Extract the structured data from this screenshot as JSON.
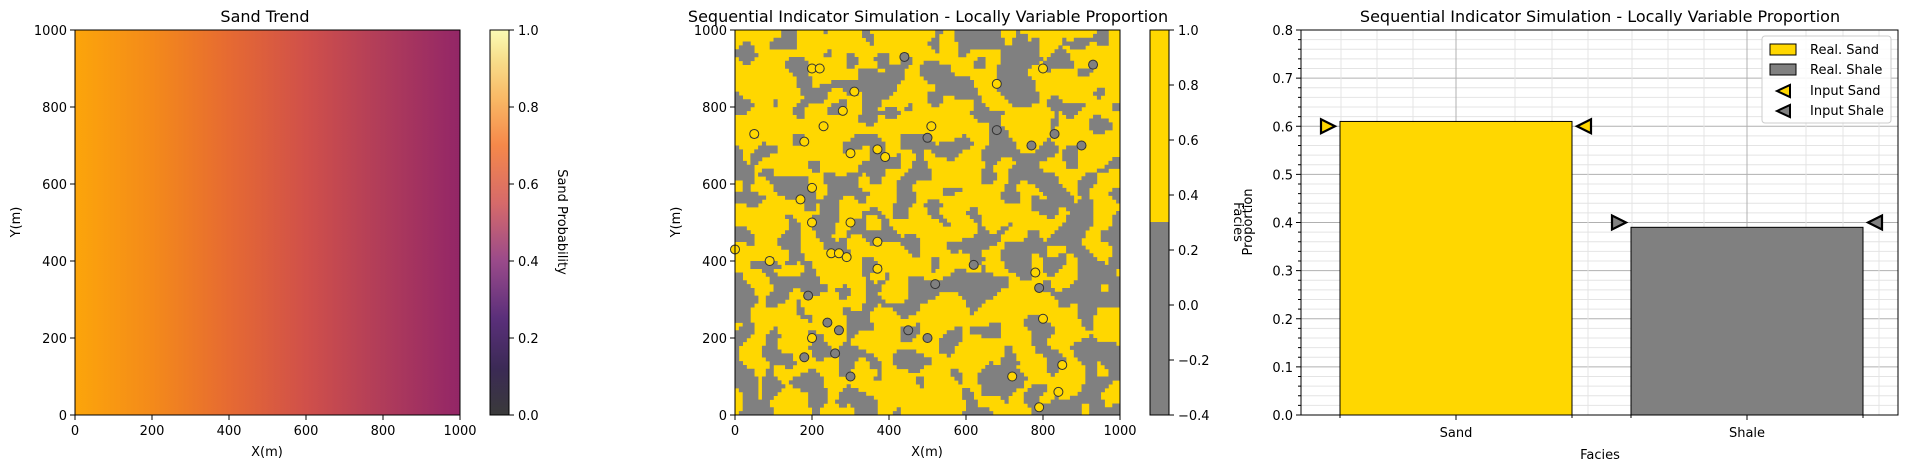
{
  "chart_data": [
    {
      "type": "heatmap",
      "title": "Sand Trend",
      "xlabel": "X(m)",
      "ylabel": "Y(m)",
      "xlim": [
        0,
        1000
      ],
      "ylim": [
        0,
        1000
      ],
      "xticks": [
        "0",
        "200",
        "400",
        "600",
        "800",
        "1000"
      ],
      "yticks": [
        "0",
        "200",
        "400",
        "600",
        "800",
        "1000"
      ],
      "trend": {
        "direction": "x",
        "probability_at_x0": 0.7,
        "probability_at_x1000": 0.3
      },
      "colorbar": {
        "label": "Sand Probability",
        "range": [
          0.0,
          1.0
        ],
        "colormap": "inferno-alpha",
        "ticks": [
          "0.0",
          "0.2",
          "0.4",
          "0.6",
          "0.8",
          "1.0"
        ]
      }
    },
    {
      "type": "heatmap",
      "title": "Sequential Indicator Simulation - Locally Variable Proportion",
      "xlabel": "X(m)",
      "ylabel": "Y(m)",
      "xlim": [
        0,
        1000
      ],
      "ylim": [
        0,
        1000
      ],
      "xticks": [
        "0",
        "200",
        "400",
        "600",
        "800",
        "1000"
      ],
      "yticks": [
        "0",
        "200",
        "400",
        "600",
        "800",
        "1000"
      ],
      "facies_colors": {
        "sand": "#FFD700",
        "shale": "#808080"
      },
      "realization_sand_proportion": 0.61,
      "colorbar": {
        "range": [
          -0.4,
          1.0
        ],
        "split": 0.5,
        "ticks": [
          "−0.4",
          "−0.2",
          "0.0",
          "0.2",
          "0.4",
          "0.6",
          "0.8",
          "1.0"
        ]
      },
      "wells": [
        {
          "x": 440,
          "y": 930,
          "facies": 0
        },
        {
          "x": 200,
          "y": 900,
          "facies": 1
        },
        {
          "x": 220,
          "y": 900,
          "facies": 1
        },
        {
          "x": 930,
          "y": 910,
          "facies": 0
        },
        {
          "x": 800,
          "y": 900,
          "facies": 1
        },
        {
          "x": 680,
          "y": 860,
          "facies": 1
        },
        {
          "x": 310,
          "y": 840,
          "facies": 1
        },
        {
          "x": 280,
          "y": 790,
          "facies": 1
        },
        {
          "x": 50,
          "y": 730,
          "facies": 1
        },
        {
          "x": 230,
          "y": 750,
          "facies": 1
        },
        {
          "x": 510,
          "y": 750,
          "facies": 1
        },
        {
          "x": 500,
          "y": 720,
          "facies": 0
        },
        {
          "x": 680,
          "y": 740,
          "facies": 0
        },
        {
          "x": 830,
          "y": 730,
          "facies": 0
        },
        {
          "x": 180,
          "y": 710,
          "facies": 1
        },
        {
          "x": 370,
          "y": 690,
          "facies": 1
        },
        {
          "x": 300,
          "y": 680,
          "facies": 1
        },
        {
          "x": 390,
          "y": 670,
          "facies": 1
        },
        {
          "x": 770,
          "y": 700,
          "facies": 0
        },
        {
          "x": 900,
          "y": 700,
          "facies": 0
        },
        {
          "x": 200,
          "y": 590,
          "facies": 1
        },
        {
          "x": 170,
          "y": 560,
          "facies": 1
        },
        {
          "x": 200,
          "y": 500,
          "facies": 1
        },
        {
          "x": 300,
          "y": 500,
          "facies": 1
        },
        {
          "x": 370,
          "y": 450,
          "facies": 1
        },
        {
          "x": 0,
          "y": 430,
          "facies": 1
        },
        {
          "x": 250,
          "y": 420,
          "facies": 1
        },
        {
          "x": 270,
          "y": 420,
          "facies": 1
        },
        {
          "x": 90,
          "y": 400,
          "facies": 1
        },
        {
          "x": 290,
          "y": 410,
          "facies": 1
        },
        {
          "x": 370,
          "y": 380,
          "facies": 1
        },
        {
          "x": 620,
          "y": 390,
          "facies": 0
        },
        {
          "x": 780,
          "y": 370,
          "facies": 1
        },
        {
          "x": 520,
          "y": 340,
          "facies": 0
        },
        {
          "x": 790,
          "y": 330,
          "facies": 0
        },
        {
          "x": 190,
          "y": 310,
          "facies": 0
        },
        {
          "x": 240,
          "y": 240,
          "facies": 0
        },
        {
          "x": 270,
          "y": 220,
          "facies": 0
        },
        {
          "x": 450,
          "y": 220,
          "facies": 0
        },
        {
          "x": 200,
          "y": 200,
          "facies": 1
        },
        {
          "x": 500,
          "y": 200,
          "facies": 0
        },
        {
          "x": 800,
          "y": 250,
          "facies": 1
        },
        {
          "x": 260,
          "y": 160,
          "facies": 0
        },
        {
          "x": 180,
          "y": 150,
          "facies": 0
        },
        {
          "x": 850,
          "y": 130,
          "facies": 1
        },
        {
          "x": 300,
          "y": 100,
          "facies": 0
        },
        {
          "x": 720,
          "y": 100,
          "facies": 1
        },
        {
          "x": 840,
          "y": 60,
          "facies": 1
        },
        {
          "x": 790,
          "y": 20,
          "facies": 1
        }
      ]
    },
    {
      "type": "bar",
      "title": "Sequential Indicator Simulation - Locally Variable Proportion",
      "xlabel": "Facies",
      "ylabel": "Proportion",
      "ylabel2": "Facies",
      "categories": [
        "Sand",
        "Shale"
      ],
      "ylim": [
        0,
        0.8
      ],
      "yticks": [
        "0.0",
        "0.1",
        "0.2",
        "0.3",
        "0.4",
        "0.5",
        "0.6",
        "0.7",
        "0.8"
      ],
      "grid": true,
      "legend_position": "top-right",
      "series": [
        {
          "name": "Real. Sand",
          "category": "Sand",
          "value": 0.61,
          "color": "#FFD700"
        },
        {
          "name": "Real. Shale",
          "category": "Shale",
          "value": 0.39,
          "color": "#808080"
        }
      ],
      "markers": [
        {
          "name": "Input Sand",
          "value": 0.6,
          "color": "#FFD700"
        },
        {
          "name": "Input Shale",
          "value": 0.4,
          "color": "#808080"
        }
      ]
    }
  ]
}
